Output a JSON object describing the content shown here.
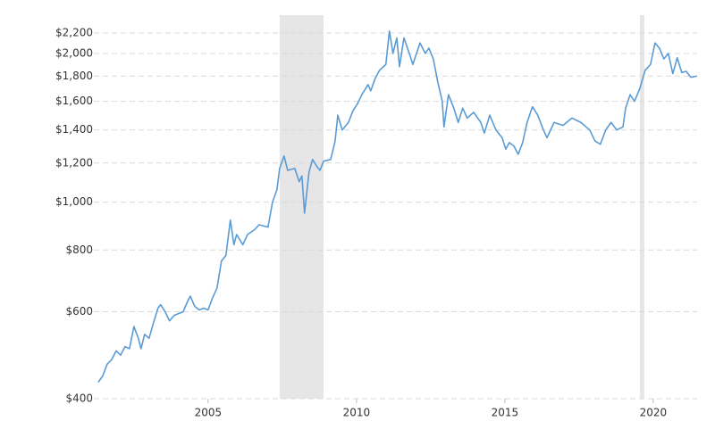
{
  "chart_data": {
    "type": "line",
    "log_scale_y": true,
    "grid": true,
    "xlim": [
      2001.3,
      2021.48
    ],
    "xticks": [
      2005,
      2010,
      2015,
      2020
    ],
    "ylim": [
      400,
      2200
    ],
    "yticks": [
      {
        "value": 400,
        "label": "$400"
      },
      {
        "value": 600,
        "label": "$600"
      },
      {
        "value": 800,
        "label": "$800"
      },
      {
        "value": 1000,
        "label": "$1,000"
      },
      {
        "value": 1200,
        "label": "$1,200"
      },
      {
        "value": 1400,
        "label": "$1,400"
      },
      {
        "value": 1600,
        "label": "$1,600"
      },
      {
        "value": 1800,
        "label": "$1,800"
      },
      {
        "value": 2000,
        "label": "$2,000"
      },
      {
        "value": 2200,
        "label": "$2,200"
      }
    ],
    "shaded_ranges": [
      [
        2007.41,
        2008.89
      ],
      [
        2019.55,
        2019.7
      ]
    ],
    "shade_color": "#e6e6e6",
    "series": [
      {
        "color": "#5b9bd5",
        "x": [
          2001.3,
          2001.45,
          2001.6,
          2001.75,
          2001.9,
          2002.05,
          2002.2,
          2002.35,
          2002.5,
          2002.65,
          2002.74,
          2002.86,
          2003.01,
          2003.16,
          2003.31,
          2003.4,
          2003.55,
          2003.7,
          2003.86,
          2004.01,
          2004.16,
          2004.31,
          2004.4,
          2004.55,
          2004.7,
          2004.85,
          2005.0,
          2005.15,
          2005.3,
          2005.45,
          2005.6,
          2005.75,
          2005.87,
          2005.96,
          2006.17,
          2006.33,
          2006.57,
          2006.72,
          2007.02,
          2007.17,
          2007.32,
          2007.41,
          2007.56,
          2007.68,
          2007.92,
          2008.07,
          2008.16,
          2008.25,
          2008.4,
          2008.52,
          2008.67,
          2008.77,
          2008.89,
          2009.13,
          2009.28,
          2009.37,
          2009.52,
          2009.73,
          2009.88,
          2010.03,
          2010.18,
          2010.39,
          2010.48,
          2010.63,
          2010.78,
          2010.99,
          2011.11,
          2011.23,
          2011.36,
          2011.45,
          2011.6,
          2011.78,
          2011.9,
          2012.14,
          2012.32,
          2012.44,
          2012.59,
          2012.74,
          2012.89,
          2012.95,
          2013.1,
          2013.28,
          2013.43,
          2013.58,
          2013.73,
          2013.95,
          2014.19,
          2014.31,
          2014.49,
          2014.7,
          2014.91,
          2015.03,
          2015.15,
          2015.3,
          2015.45,
          2015.6,
          2015.75,
          2015.93,
          2016.11,
          2016.3,
          2016.42,
          2016.66,
          2016.96,
          2017.26,
          2017.56,
          2017.86,
          2018.04,
          2018.22,
          2018.4,
          2018.58,
          2018.77,
          2018.98,
          2019.07,
          2019.22,
          2019.37,
          2019.55,
          2019.73,
          2019.91,
          2020.06,
          2020.21,
          2020.36,
          2020.51,
          2020.66,
          2020.81,
          2020.96,
          2021.11,
          2021.27,
          2021.48
        ],
        "values": [
          432,
          445,
          470,
          480,
          500,
          490,
          510,
          505,
          560,
          530,
          505,
          540,
          530,
          570,
          610,
          620,
          600,
          575,
          590,
          595,
          600,
          630,
          645,
          615,
          605,
          610,
          605,
          640,
          670,
          760,
          780,
          920,
          820,
          860,
          820,
          860,
          880,
          900,
          890,
          1000,
          1060,
          1170,
          1240,
          1160,
          1170,
          1100,
          1130,
          950,
          1150,
          1220,
          1180,
          1160,
          1210,
          1220,
          1330,
          1500,
          1400,
          1450,
          1530,
          1580,
          1650,
          1730,
          1680,
          1780,
          1850,
          1900,
          2220,
          2000,
          2150,
          1880,
          2150,
          2000,
          1900,
          2100,
          2000,
          2050,
          1950,
          1750,
          1600,
          1420,
          1650,
          1550,
          1450,
          1550,
          1480,
          1520,
          1450,
          1380,
          1500,
          1400,
          1350,
          1280,
          1320,
          1300,
          1250,
          1320,
          1450,
          1560,
          1500,
          1400,
          1350,
          1450,
          1430,
          1480,
          1450,
          1400,
          1330,
          1310,
          1400,
          1450,
          1400,
          1420,
          1550,
          1650,
          1600,
          1700,
          1850,
          1900,
          2100,
          2050,
          1950,
          2000,
          1820,
          1960,
          1830,
          1840,
          1790,
          1800
        ]
      }
    ]
  }
}
